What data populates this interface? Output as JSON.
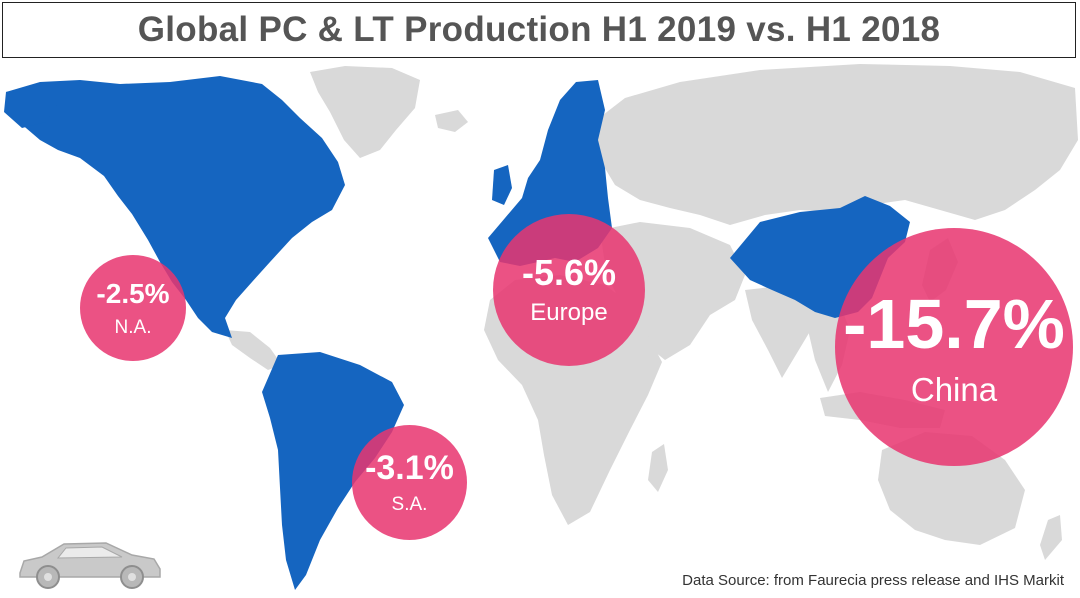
{
  "title": "Global PC & LT Production H1 2019 vs. H1 2018",
  "colors": {
    "highlight_region": "#1565c0",
    "other_land": "#d9d9d9",
    "bubble": "#e83670",
    "bubble_text": "#ffffff",
    "title_text": "#555555"
  },
  "regions": [
    {
      "name": "North America",
      "value": "-2.5%",
      "label": "N.A."
    },
    {
      "name": "Europe",
      "value": "-5.6%",
      "label": "Europe"
    },
    {
      "name": "South America",
      "value": "-3.1%",
      "label": "S.A."
    },
    {
      "name": "China",
      "value": "-15.7%",
      "label": "China"
    }
  ],
  "source": "Data Source: from Faurecia press release and  IHS Markit",
  "icons": {
    "vehicle": "car-icon"
  }
}
